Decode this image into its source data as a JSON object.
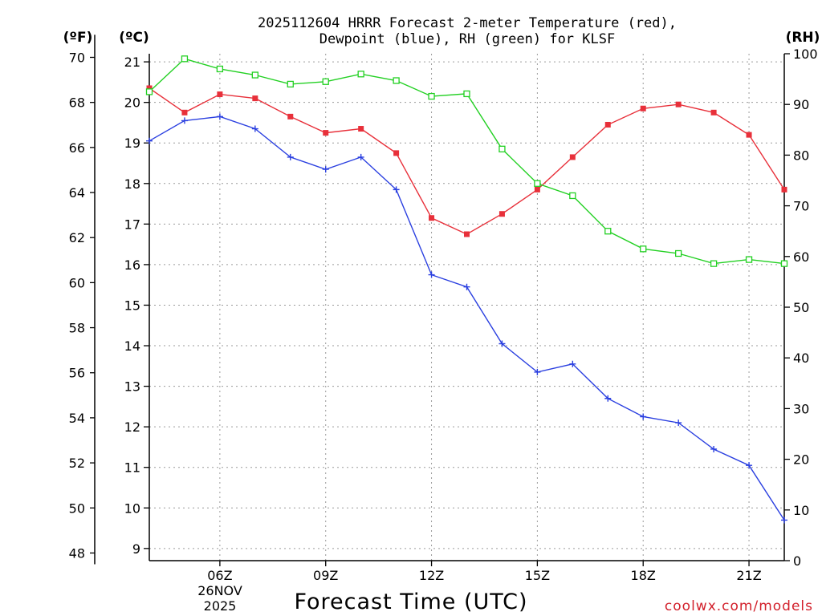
{
  "chart_data": {
    "type": "line",
    "title": [
      "2025112604 HRRR Forecast 2-meter Temperature (red),",
      "Dewpoint (blue), RH (green) for KLSF"
    ],
    "units": {
      "left_outer": "(ºF)",
      "left_inner": "(ºC)",
      "right": "(RH)"
    },
    "xlabel": "Forecast Time (UTC)",
    "x_hours": [
      4,
      5,
      6,
      7,
      8,
      9,
      10,
      11,
      12,
      13,
      14,
      15,
      16,
      17,
      18,
      19,
      20,
      21,
      22
    ],
    "xlim": [
      4,
      22
    ],
    "x_ticks": [
      {
        "hour": 6,
        "label": "06Z"
      },
      {
        "hour": 9,
        "label": "09Z"
      },
      {
        "hour": 12,
        "label": "12Z"
      },
      {
        "hour": 15,
        "label": "15Z"
      },
      {
        "hour": 18,
        "label": "18Z"
      },
      {
        "hour": 21,
        "label": "21Z"
      }
    ],
    "x_date_labels": [
      "26NOV",
      "2025"
    ],
    "celsius_axis": {
      "ylim": [
        8.7,
        21.2
      ],
      "ticks": [
        9,
        10,
        11,
        12,
        13,
        14,
        15,
        16,
        17,
        18,
        19,
        20,
        21
      ]
    },
    "fahrenheit_ticks": [
      48,
      50,
      52,
      54,
      56,
      58,
      60,
      62,
      64,
      66,
      68,
      70
    ],
    "rh_axis": {
      "ylim": [
        0,
        100
      ],
      "ticks": [
        0,
        10,
        20,
        30,
        40,
        50,
        60,
        70,
        80,
        90,
        100
      ]
    },
    "series": [
      {
        "name": "Temperature",
        "units": "C",
        "axis": "celsius",
        "color": "#e8303a",
        "marker": "filled-square",
        "values": [
          20.35,
          19.75,
          20.2,
          20.1,
          19.65,
          19.25,
          19.35,
          18.75,
          17.15,
          16.75,
          17.25,
          17.85,
          18.65,
          19.45,
          19.85,
          19.95,
          19.75,
          19.2,
          17.85
        ]
      },
      {
        "name": "Dewpoint",
        "units": "C",
        "axis": "celsius",
        "color": "#2a3fe0",
        "marker": "plus",
        "values": [
          19.05,
          19.55,
          19.65,
          19.35,
          18.65,
          18.35,
          18.65,
          17.85,
          15.75,
          15.45,
          14.05,
          13.35,
          13.55,
          12.7,
          12.25,
          12.1,
          11.45,
          11.05,
          9.7
        ]
      },
      {
        "name": "RH",
        "units": "%",
        "axis": "rh",
        "color": "#22d022",
        "marker": "open-square",
        "values": [
          92.5,
          99,
          97,
          95.8,
          94,
          94.5,
          96,
          94.7,
          91.6,
          92.1,
          81.2,
          74.4,
          72,
          65,
          61.5,
          60.6,
          58.6,
          59.4,
          58.6
        ]
      }
    ],
    "grid": true,
    "credit": "coolwx.com/models"
  },
  "colors": {
    "credit": "#d21f2a",
    "axis": "#000000",
    "grid": "#9a9a9a"
  }
}
